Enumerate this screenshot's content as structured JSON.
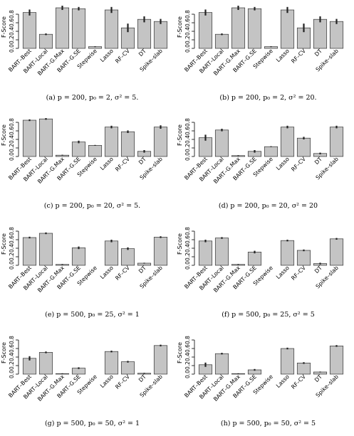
{
  "figure": {
    "panels": [
      {
        "caption": "(a) p = 200, p₀ = 2, σ² = 5."
      },
      {
        "caption": "(b) p = 200, p₀ = 2, σ² = 20."
      },
      {
        "caption": "(c) p = 200, p₀ = 20, σ² = 5."
      },
      {
        "caption": "(d) p = 200, p₀ = 20, σ² = 20"
      },
      {
        "caption": "(e) p = 500, p₀ = 25, σ² = 1"
      },
      {
        "caption": "(f) p = 500, p₀ = 25, σ² = 5"
      },
      {
        "caption": "(g) p = 500, p₀ = 50, σ² = 1"
      },
      {
        "caption": "(h) p = 500, p₀ = 50, σ² = 5"
      }
    ]
  },
  "chart_data": [
    {
      "type": "bar",
      "caption": "(a) p = 200, p₀ = 2, σ² = 5.",
      "ylabel": "F-Score",
      "ylim": [
        0,
        1
      ],
      "yticks": [
        "0.0",
        "0.2",
        "0.4",
        "0.6",
        "0.8"
      ],
      "categories": [
        "BART–Best",
        "BART–Local",
        "BART–G.Max",
        "BART–G.SE",
        "Stepwise",
        "Lasso",
        "RF–CV",
        "DT",
        "Spike–slab"
      ],
      "values": [
        0.84,
        0.33,
        0.95,
        0.93,
        0.04,
        0.9,
        0.48,
        0.68,
        0.63
      ],
      "errors": [
        0.07,
        0.02,
        0.05,
        0.04,
        0.01,
        0.07,
        0.1,
        0.07,
        0.06
      ]
    },
    {
      "type": "bar",
      "caption": "(b) p = 200, p₀ = 2, σ² = 20.",
      "ylabel": "F-Score",
      "ylim": [
        0,
        1
      ],
      "yticks": [
        "0.0",
        "0.2",
        "0.4",
        "0.6",
        "0.8"
      ],
      "categories": [
        "BART–Best",
        "BART–Local",
        "BART–G.Max",
        "BART–G.SE",
        "Stepwise",
        "Lasso",
        "RF–CV",
        "DT",
        "Spike–slab"
      ],
      "values": [
        0.84,
        0.33,
        0.95,
        0.93,
        0.04,
        0.9,
        0.48,
        0.68,
        0.63
      ],
      "errors": [
        0.07,
        0.02,
        0.05,
        0.04,
        0.01,
        0.07,
        0.1,
        0.07,
        0.06
      ]
    },
    {
      "type": "bar",
      "caption": "(c) p = 200, p₀ = 20, σ² = 5.",
      "ylabel": "F-Score",
      "ylim": [
        0,
        1
      ],
      "yticks": [
        "0.0",
        "0.2",
        "0.4",
        "0.6",
        "0.8"
      ],
      "categories": [
        "BART–Best",
        "BART–Local",
        "BART–G.Max",
        "BART–G.SE",
        "Stepwise",
        "Lasso",
        "RF–CV",
        "DT",
        "Spike–slab"
      ],
      "values": [
        0.85,
        0.88,
        0.03,
        0.34,
        0.26,
        0.69,
        0.58,
        0.12,
        0.69
      ],
      "errors": [
        0.02,
        0.02,
        0.01,
        0.03,
        0.01,
        0.03,
        0.03,
        0.03,
        0.04
      ]
    },
    {
      "type": "bar",
      "caption": "(d) p = 200, p₀ = 20, σ² = 20",
      "ylabel": "F-Score",
      "ylim": [
        0,
        1
      ],
      "yticks": [
        "0.0",
        "0.2",
        "0.4",
        "0.6",
        "0.8"
      ],
      "categories": [
        "BART–Best",
        "BART–Local",
        "BART–G.Max",
        "BART–G.SE",
        "Stepwise",
        "Lasso",
        "RF–CV",
        "DT",
        "Spike–slab"
      ],
      "values": [
        0.44,
        0.62,
        0.02,
        0.12,
        0.23,
        0.69,
        0.43,
        0.07,
        0.69
      ],
      "errors": [
        0.07,
        0.03,
        0.01,
        0.03,
        0.01,
        0.03,
        0.03,
        0.02,
        0.03
      ]
    },
    {
      "type": "bar",
      "caption": "(e) p = 500, p₀ = 25, σ² = 1",
      "ylabel": "F-Score",
      "ylim": [
        0,
        1
      ],
      "yticks": [
        "0.0",
        "0.2",
        "0.4",
        "0.6",
        "0.8"
      ],
      "categories": [
        "BART–Best",
        "BART–Local",
        "BART–G.Max",
        "BART–G.SE",
        "Stepwise",
        "Lasso",
        "RF–CV",
        "DT",
        "Spike–slab"
      ],
      "values": [
        0.65,
        0.75,
        0.02,
        0.41,
        0.0,
        0.57,
        0.39,
        0.05,
        0.66
      ],
      "errors": [
        0.02,
        0.02,
        0.01,
        0.03,
        0.0,
        0.03,
        0.03,
        0.01,
        0.02
      ]
    },
    {
      "type": "bar",
      "caption": "(f) p = 500, p₀ = 25, σ² = 5",
      "ylabel": "F-Score",
      "ylim": [
        0,
        1
      ],
      "yticks": [
        "0.0",
        "0.2",
        "0.4",
        "0.6",
        "0.8"
      ],
      "categories": [
        "BART–Best",
        "BART–Local",
        "BART–G.Max",
        "BART–G.SE",
        "Stepwise",
        "Lasso",
        "RF–CV",
        "DT",
        "Spike–slab"
      ],
      "values": [
        0.57,
        0.64,
        0.02,
        0.31,
        0.0,
        0.58,
        0.35,
        0.04,
        0.62
      ],
      "errors": [
        0.03,
        0.02,
        0.01,
        0.03,
        0.0,
        0.02,
        0.02,
        0.02,
        0.02
      ]
    },
    {
      "type": "bar",
      "caption": "(g) p = 500, p₀ = 50, σ² = 1",
      "ylabel": "F-Score",
      "ylim": [
        0,
        1
      ],
      "yticks": [
        "0.0",
        "0.2",
        "0.4",
        "0.6",
        "0.8"
      ],
      "categories": [
        "BART–Best",
        "BART–Local",
        "BART–G.Max",
        "BART–G.SE",
        "Stepwise",
        "Lasso",
        "RF–CV",
        "DT",
        "Spike–slab"
      ],
      "values": [
        0.37,
        0.51,
        0.01,
        0.14,
        0.0,
        0.53,
        0.29,
        0.02,
        0.67
      ],
      "errors": [
        0.05,
        0.02,
        0.01,
        0.02,
        0.0,
        0.02,
        0.02,
        0.01,
        0.02
      ]
    },
    {
      "type": "bar",
      "caption": "(h) p = 500, p₀ = 50, σ² = 5",
      "ylabel": "F-Score",
      "ylim": [
        0,
        1
      ],
      "yticks": [
        "0.0",
        "0.2",
        "0.4",
        "0.6",
        "0.8"
      ],
      "categories": [
        "BART–Best",
        "BART–Local",
        "BART–G.Max",
        "BART–G.SE",
        "Stepwise",
        "Lasso",
        "RF–CV",
        "DT",
        "Spike–slab"
      ],
      "values": [
        0.22,
        0.48,
        0.01,
        0.1,
        0.0,
        0.6,
        0.26,
        0.05,
        0.66
      ],
      "errors": [
        0.05,
        0.02,
        0.01,
        0.02,
        0.0,
        0.02,
        0.02,
        0.01,
        0.02
      ]
    }
  ]
}
